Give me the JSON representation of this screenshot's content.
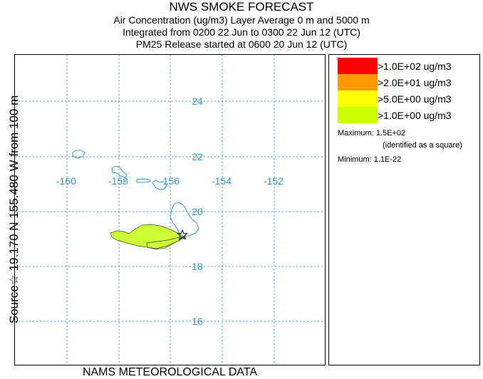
{
  "header": {
    "title": "NWS SMOKE FORECAST",
    "line1": "Air Concentration (ug/m3) Layer Average    0 m and  5000 m",
    "line2": "Integrated from 0200 22 Jun to 0300 22 Jun 12 (UTC)",
    "line3": "PM25 Release started at 0600 20 Jun 12 (UTC)"
  },
  "side_label": "Source☆ 19.170  N 155.480  W      from   100 m",
  "footer": "NAMS METEOROLOGICAL DATA",
  "map": {
    "lon_labels": [
      "-160",
      "-158",
      "-156",
      "-154",
      "-152"
    ],
    "lat_labels": [
      "24",
      "22",
      "20",
      "18",
      "16"
    ],
    "grid_color": "#3399cc",
    "coast_color": "#3399cc",
    "plume_color": "#ccff33",
    "source_marker": "star"
  },
  "legend": {
    "items": [
      {
        "label": ">1.0E+02 ug/m3",
        "color": "#ff0000"
      },
      {
        "label": ">2.0E+01 ug/m3",
        "color": "#ff9900"
      },
      {
        "label": ">5.0E+00 ug/m3",
        "color": "#ffff00"
      },
      {
        "label": ">1.0E+00 ug/m3",
        "color": "#ccff00"
      }
    ],
    "maximum": "Maximum: 1.5E+02",
    "maximum_note": "(identified as a square)",
    "minimum": "Minimum: 1.1E-22"
  }
}
